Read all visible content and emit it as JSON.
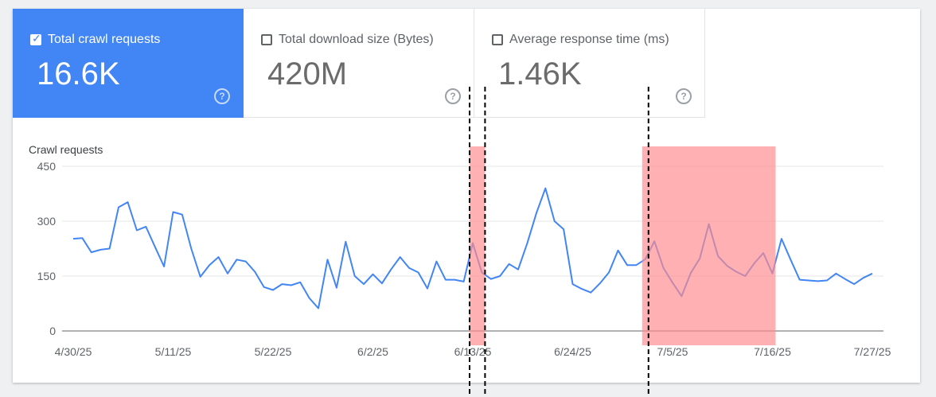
{
  "tabs": [
    {
      "label": "Total crawl requests",
      "value": "16.6K",
      "selected": true
    },
    {
      "label": "Total download size (Bytes)",
      "value": "420M",
      "selected": false
    },
    {
      "label": "Average response time (ms)",
      "value": "1.46K",
      "selected": false
    }
  ],
  "check_glyph": "✓",
  "help_glyph": "?",
  "colors": {
    "accent": "#4285f4",
    "line": "#4285f4",
    "highlight": "#ff8a8e"
  },
  "chart_data": {
    "type": "line",
    "title": "Crawl requests",
    "ylim": [
      0,
      450
    ],
    "yticks": [
      "0",
      "150",
      "300",
      "450"
    ],
    "xticks": [
      "4/30/25",
      "5/11/25",
      "5/22/25",
      "6/2/25",
      "6/13/25",
      "6/24/25",
      "7/5/25",
      "7/16/25",
      "7/27/25"
    ],
    "x_start": "4/30/25",
    "x_end": "7/27/25",
    "grid": true,
    "series": [
      {
        "values": [
          252,
          254,
          215,
          222,
          225,
          338,
          352,
          275,
          285,
          230,
          176,
          325,
          318,
          225,
          148,
          180,
          202,
          157,
          195,
          190,
          162,
          120,
          112,
          128,
          125,
          133,
          90,
          62,
          195,
          118,
          244,
          150,
          128,
          155,
          130,
          168,
          202,
          172,
          160,
          116,
          190,
          140,
          140,
          135,
          240,
          160,
          142,
          150,
          183,
          168,
          240,
          322,
          390,
          300,
          278,
          128,
          115,
          105,
          130,
          160,
          220,
          180,
          180,
          196,
          245,
          172,
          132,
          95,
          158,
          198,
          292,
          205,
          178,
          162,
          150,
          185,
          213,
          157,
          252,
          195,
          140,
          138,
          136,
          138,
          157,
          142,
          128,
          145,
          157
        ]
      }
    ],
    "highlight_bands": [
      {
        "from": "6/13/25",
        "to": "6/14/25"
      },
      {
        "from": "7/2/25",
        "to": "7/16/25"
      }
    ],
    "vertical_markers": [
      "6/13/25",
      "6/14/25",
      "7/2/25"
    ]
  }
}
